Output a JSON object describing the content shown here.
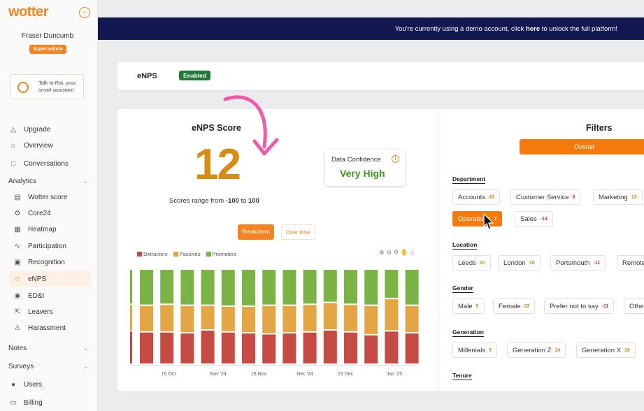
{
  "sidebar": {
    "logo": "wotter",
    "user_name": "Fraser Duncumb",
    "role": "Super-admin",
    "rai_card": "Talk to Rai, your smart assistant",
    "top_items": [
      {
        "label": "Upgrade",
        "icon": "rocket-icon"
      },
      {
        "label": "Overview",
        "icon": "home-icon"
      },
      {
        "label": "Conversations",
        "icon": "chat-icon"
      }
    ],
    "analytics_label": "Analytics",
    "analytics_items": [
      {
        "label": "Wotter score",
        "icon": "bar-chart-icon"
      },
      {
        "label": "Core24",
        "icon": "gear-icon"
      },
      {
        "label": "Heatmap",
        "icon": "map-icon"
      },
      {
        "label": "Participation",
        "icon": "activity-icon"
      },
      {
        "label": "Recognition",
        "icon": "camera-icon"
      },
      {
        "label": "eNPS",
        "icon": "smile-icon"
      },
      {
        "label": "ED&I",
        "icon": "people-icon"
      },
      {
        "label": "Leavers",
        "icon": "exit-icon"
      },
      {
        "label": "Harassment",
        "icon": "alert-icon"
      }
    ],
    "notes_label": "Notes",
    "surveys_label": "Surveys",
    "bottom_items": [
      {
        "label": "Users",
        "icon": "users-icon"
      },
      {
        "label": "Billing",
        "icon": "card-icon"
      }
    ]
  },
  "banner": {
    "text_before": "You're currently using a demo account, click ",
    "link": "here",
    "text_after": " to unlock the full platform!"
  },
  "enps_header": {
    "title": "eNPS",
    "status": "Enabled"
  },
  "score": {
    "title": "eNPS Score",
    "value": "12",
    "range_prefix": "Scores range from ",
    "range_min": "-100",
    "range_to": " to ",
    "range_max": "100"
  },
  "confidence": {
    "label": "Data Confidence",
    "value": "Very High"
  },
  "tabs": {
    "breakdown": "Breakdown",
    "over_time": "Over time"
  },
  "colors": {
    "detractors": "#c74b45",
    "passives": "#e4a544",
    "promoters": "#7bb445",
    "accent": "#f5831f"
  },
  "chart_data": {
    "type": "bar",
    "stacked": true,
    "normalized": true,
    "x_tick_labels": [
      "15 Oct",
      "Nov '24",
      "15 Nov",
      "Dec '24",
      "15 Dec",
      "Jan '25"
    ],
    "series": [
      {
        "name": "Detractors",
        "values": [
          0.35,
          0.34,
          0.34,
          0.33,
          0.36,
          0.34,
          0.33,
          0.32,
          0.33,
          0.34,
          0.36,
          0.34,
          0.31,
          0.35,
          0.33
        ]
      },
      {
        "name": "Passives",
        "values": [
          0.28,
          0.28,
          0.29,
          0.29,
          0.26,
          0.27,
          0.28,
          0.3,
          0.29,
          0.29,
          0.29,
          0.29,
          0.31,
          0.34,
          0.29
        ]
      },
      {
        "name": "Promoters",
        "values": [
          0.37,
          0.38,
          0.37,
          0.38,
          0.38,
          0.39,
          0.39,
          0.38,
          0.38,
          0.37,
          0.35,
          0.37,
          0.38,
          0.31,
          0.38
        ]
      }
    ]
  },
  "filters": {
    "title": "Filters",
    "overall": "Overall",
    "groups": [
      {
        "label": "Department",
        "chips": [
          {
            "label": "Accounts",
            "count": "43"
          },
          {
            "label": "Customer Service",
            "count": "0"
          },
          {
            "label": "Marketing",
            "count": "13"
          },
          {
            "label": "Operations",
            "count": "7"
          },
          {
            "label": "Sales",
            "count": "-14"
          }
        ]
      },
      {
        "label": "Location",
        "chips": [
          {
            "label": "Leeds",
            "count": "10"
          },
          {
            "label": "London",
            "count": "15"
          },
          {
            "label": "Portsmouth",
            "count": "-11"
          },
          {
            "label": "Remote",
            "count": ""
          }
        ]
      },
      {
        "label": "Gender",
        "chips": [
          {
            "label": "Male",
            "count": "9"
          },
          {
            "label": "Female",
            "count": "22"
          },
          {
            "label": "Prefer not to say",
            "count": "-11"
          },
          {
            "label": "Other",
            "count": ""
          }
        ]
      },
      {
        "label": "Generation",
        "chips": [
          {
            "label": "Millenials",
            "count": "6"
          },
          {
            "label": "Generation Z",
            "count": "14"
          },
          {
            "label": "Generation X",
            "count": "18"
          }
        ]
      },
      {
        "label": "Tenure",
        "chips": []
      }
    ]
  }
}
